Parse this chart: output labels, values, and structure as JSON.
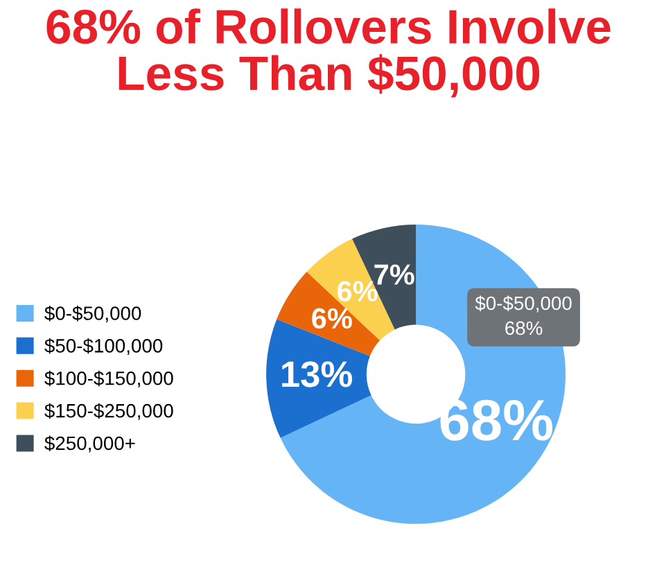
{
  "chart_data": {
    "type": "donut",
    "title": "68% of Rollovers Involve\nLess Than $50,000",
    "categories": [
      "$0-$50,000",
      "$50-$100,000",
      "$100-$150,000",
      "$150-$250,000",
      "$250,000+"
    ],
    "values": [
      68,
      13,
      6,
      6,
      7
    ],
    "colors": [
      "#64b4f6",
      "#1a6fcf",
      "#e8650a",
      "#fcd04f",
      "#3e4e5a"
    ],
    "value_labels": [
      "68%",
      "13%",
      "6%",
      "6%",
      "7%"
    ],
    "annotations": [
      "$0-$50,000\n68%"
    ],
    "legend": "left"
  }
}
